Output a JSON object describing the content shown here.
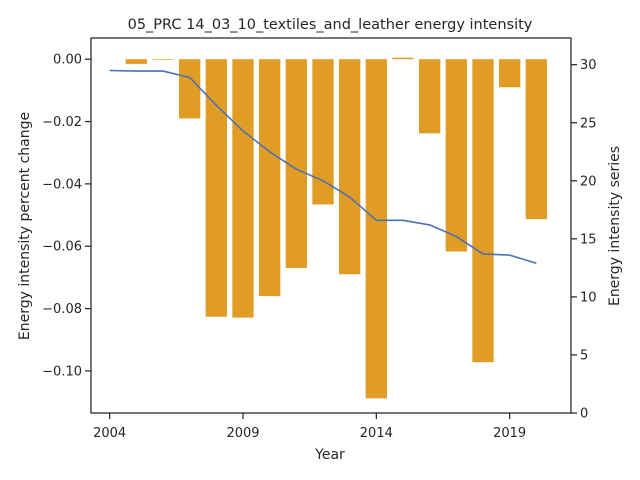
{
  "chart_data": {
    "type": "bar",
    "title": "05_PRC 14_03_10_textiles_and_leather energy intensity",
    "xlabel": "Year",
    "ylabel": "Energy intensity percent change",
    "y2label": "Energy intensity series",
    "xlim": [
      2003.3,
      2021.3
    ],
    "ylim": [
      -0.1135,
      0.0068
    ],
    "y2lim": [
      0,
      32.3
    ],
    "xticks": [
      2004,
      2009,
      2014,
      2019
    ],
    "yticks": [
      0.0,
      -0.02,
      -0.04,
      -0.06,
      -0.08,
      -0.1
    ],
    "ytick_labels": [
      "0.00",
      "−0.02",
      "−0.04",
      "−0.06",
      "−0.08",
      "−0.10"
    ],
    "y2ticks": [
      0,
      5,
      10,
      15,
      20,
      25,
      30
    ],
    "grid": false,
    "series": [
      {
        "kind": "bar",
        "axis": "left",
        "color": "#e09c24",
        "x": [
          2005,
          2006,
          2007,
          2008,
          2009,
          2010,
          2011,
          2012,
          2013,
          2014,
          2015,
          2016,
          2017,
          2018,
          2019,
          2020
        ],
        "values": [
          -0.0015,
          -0.0002,
          -0.019,
          -0.0826,
          -0.0829,
          -0.076,
          -0.067,
          -0.0466,
          -0.069,
          -0.1088,
          0.0005,
          -0.0238,
          -0.0617,
          -0.0972,
          -0.009,
          -0.0513
        ]
      },
      {
        "kind": "line",
        "axis": "right",
        "color": "#4c72b0",
        "x": [
          2004,
          2005,
          2006,
          2007,
          2008,
          2009,
          2010,
          2011,
          2012,
          2013,
          2014,
          2015,
          2016,
          2017,
          2018,
          2019,
          2020
        ],
        "values": [
          29.5,
          29.45,
          29.45,
          28.9,
          26.5,
          24.3,
          22.5,
          21.0,
          20.0,
          18.6,
          16.6,
          16.6,
          16.2,
          15.2,
          13.7,
          13.6,
          12.9
        ]
      }
    ]
  }
}
